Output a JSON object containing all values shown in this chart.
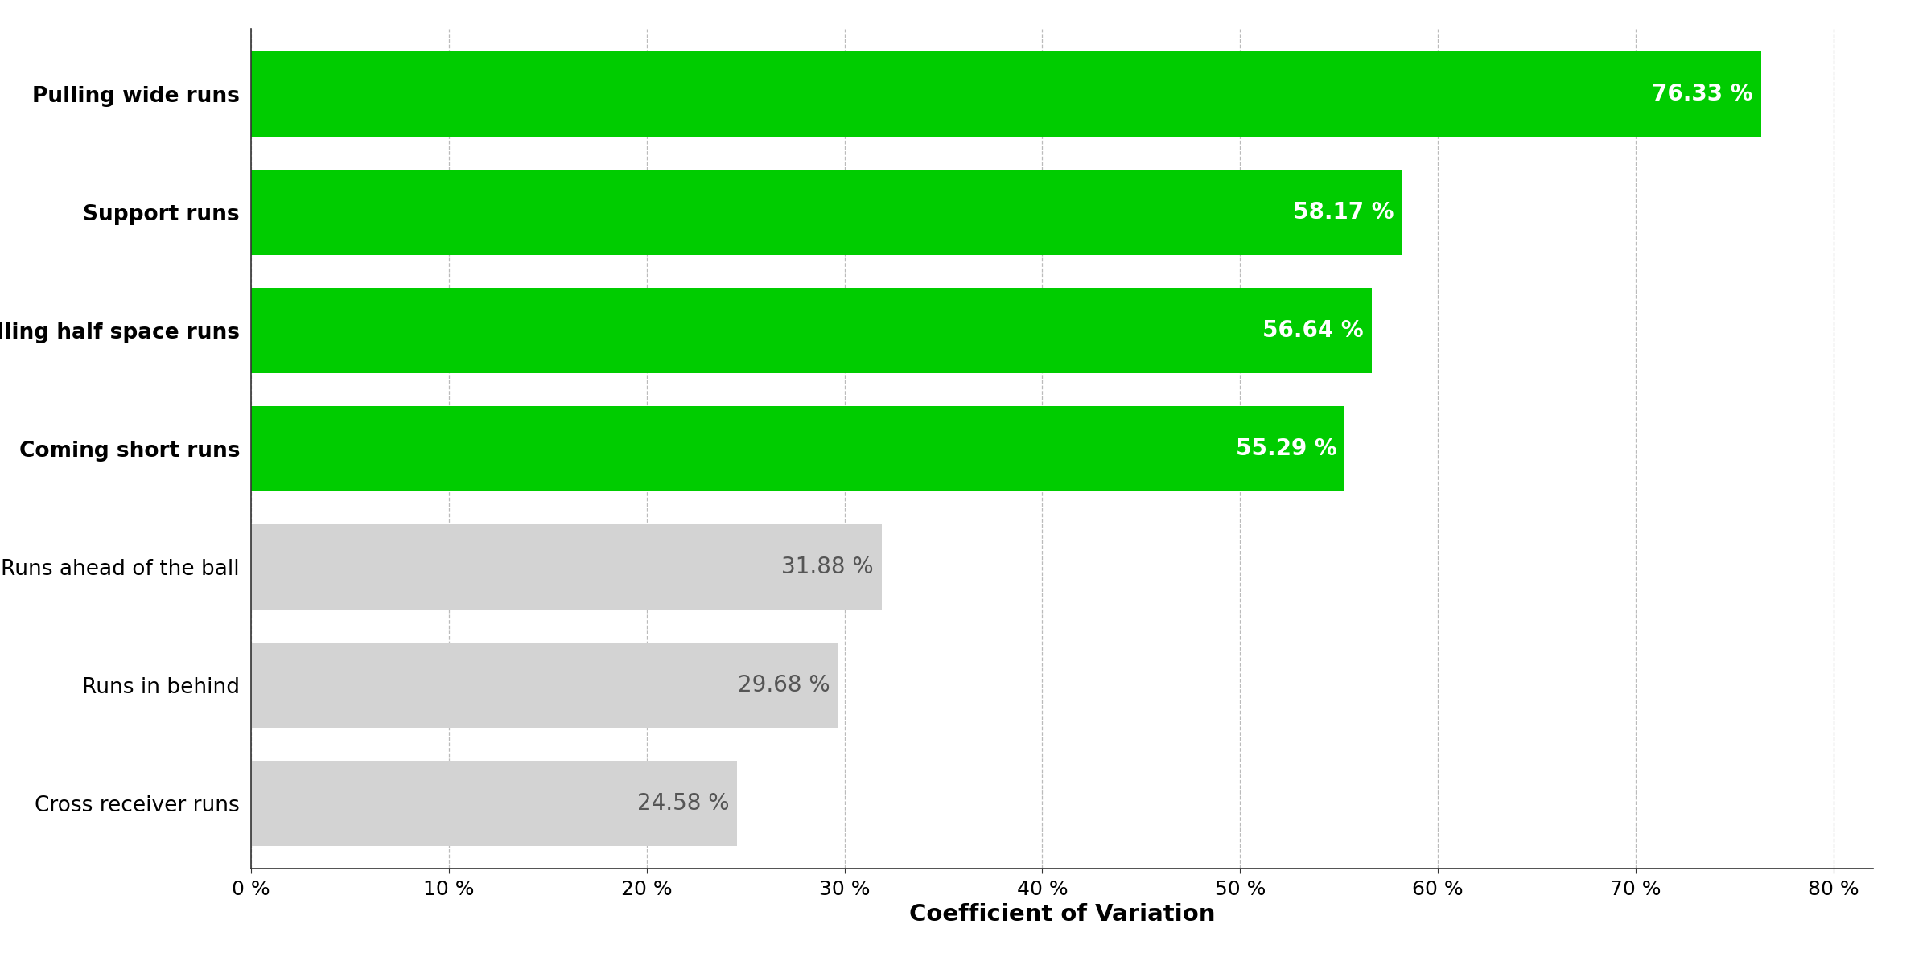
{
  "categories": [
    "Cross receiver runs",
    "Runs in behind",
    "Runs ahead of the ball",
    "Coming short runs",
    "Pulling half space runs",
    "Support runs",
    "Pulling wide runs"
  ],
  "values": [
    24.58,
    29.68,
    31.88,
    55.29,
    56.64,
    58.17,
    76.33
  ],
  "bar_colors": [
    "#d3d3d3",
    "#d3d3d3",
    "#d3d3d3",
    "#00cc00",
    "#00cc00",
    "#00cc00",
    "#00cc00"
  ],
  "label_colors": [
    "#555555",
    "#555555",
    "#555555",
    "#ffffff",
    "#ffffff",
    "#ffffff",
    "#ffffff"
  ],
  "label_fontweights": [
    "normal",
    "normal",
    "normal",
    "bold",
    "bold",
    "bold",
    "bold"
  ],
  "ytick_fontweights": [
    "normal",
    "normal",
    "normal",
    "bold",
    "bold",
    "bold",
    "bold"
  ],
  "xlabel": "Coefficient of Variation",
  "xlim": [
    0,
    82
  ],
  "xticks": [
    0,
    10,
    20,
    30,
    40,
    50,
    60,
    70,
    80
  ],
  "xtick_labels": [
    "0 %",
    "10 %",
    "20 %",
    "30 %",
    "40 %",
    "50 %",
    "60 %",
    "70 %",
    "80 %"
  ],
  "background_color": "#ffffff",
  "grid_color": "#aaaaaa",
  "bar_height": 0.72,
  "label_fontsize": 20,
  "tick_fontsize": 18,
  "xlabel_fontsize": 21,
  "ytick_fontsize": 19,
  "figsize": [
    24.0,
    12.0
  ],
  "dpi": 100
}
